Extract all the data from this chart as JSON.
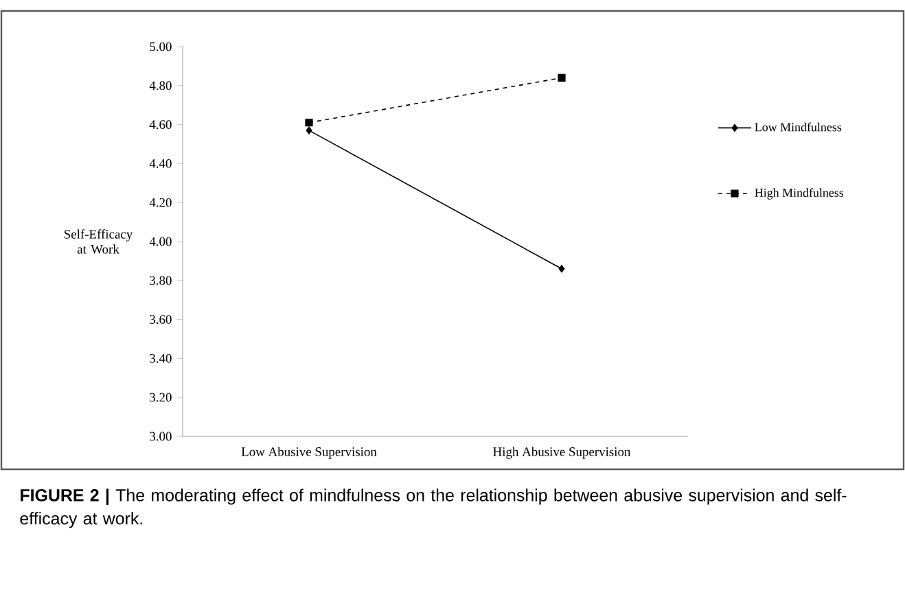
{
  "chart_data": {
    "type": "line",
    "categories": [
      "Low Abusive Supervision",
      "High Abusive Supervision"
    ],
    "ylabel": "Self-Efficacy at Work",
    "series": [
      {
        "name": "Low Mindfulness",
        "color": "#000000",
        "values": [
          4.57,
          3.86
        ],
        "marker": "diamond",
        "line_style": "solid"
      },
      {
        "name": "High Mindfulness",
        "color": "#000000",
        "values": [
          4.61,
          4.84
        ],
        "marker": "square",
        "line_style": "dashed"
      }
    ],
    "ylim": [
      3.0,
      5.0
    ],
    "yticks": [
      {
        "value": 3.0,
        "label": "3.00"
      },
      {
        "value": 3.2,
        "label": "3.20"
      },
      {
        "value": 3.4,
        "label": "3.40"
      },
      {
        "value": 3.6,
        "label": "3.60"
      },
      {
        "value": 3.8,
        "label": "3.80"
      },
      {
        "value": 4.0,
        "label": "4.00"
      },
      {
        "value": 4.2,
        "label": "4.20"
      },
      {
        "value": 4.4,
        "label": "4.40"
      },
      {
        "value": 4.6,
        "label": "4.60"
      },
      {
        "value": 4.8,
        "label": "4.80"
      },
      {
        "value": 5.0,
        "label": "5.00"
      }
    ],
    "grid": false,
    "legend": "right",
    "annotations": [
      "**FIGURE 2 |** The moderating effect of mindfulness on the relationship between abusive supervision and self-efficacy at work."
    ]
  }
}
